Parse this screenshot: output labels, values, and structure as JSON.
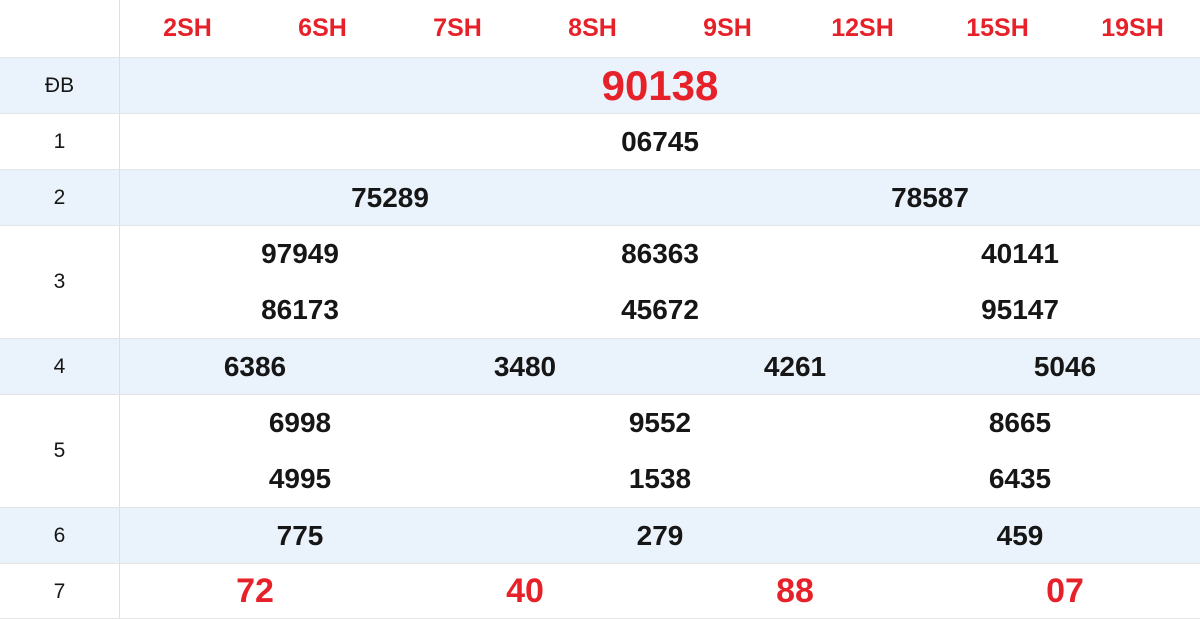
{
  "colors": {
    "accent_red": "#e62129",
    "row_alt_bg": "#eaf3fb",
    "text_dark": "#161616",
    "border": "#e4e4e4"
  },
  "header": {
    "columns": [
      "2SH",
      "6SH",
      "7SH",
      "8SH",
      "9SH",
      "12SH",
      "15SH",
      "19SH"
    ]
  },
  "rows": [
    {
      "label": "ĐB",
      "type": "special",
      "values": [
        "90138"
      ]
    },
    {
      "label": "1",
      "values": [
        "06745"
      ]
    },
    {
      "label": "2",
      "values": [
        "75289",
        "78587"
      ]
    },
    {
      "label": "3",
      "lines": [
        [
          "97949",
          "86363",
          "40141"
        ],
        [
          "86173",
          "45672",
          "95147"
        ]
      ]
    },
    {
      "label": "4",
      "values": [
        "6386",
        "3480",
        "4261",
        "5046"
      ]
    },
    {
      "label": "5",
      "lines": [
        [
          "6998",
          "9552",
          "8665"
        ],
        [
          "4995",
          "1538",
          "6435"
        ]
      ]
    },
    {
      "label": "6",
      "values": [
        "775",
        "279",
        "459"
      ]
    },
    {
      "label": "7",
      "type": "red",
      "values": [
        "72",
        "40",
        "88",
        "07"
      ]
    }
  ]
}
